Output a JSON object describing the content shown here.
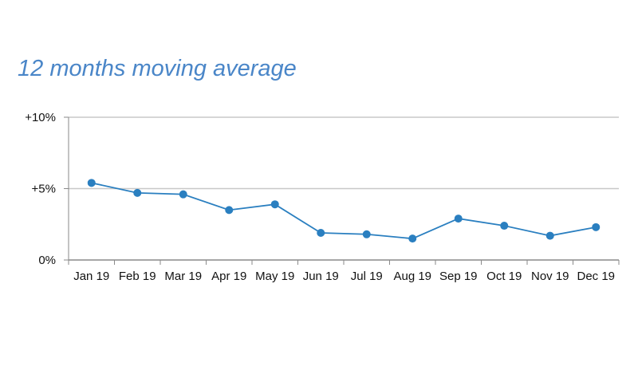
{
  "chart_data": {
    "type": "line",
    "title": "12 months moving average",
    "categories": [
      "Jan 19",
      "Feb 19",
      "Mar 19",
      "Apr 19",
      "May 19",
      "Jun 19",
      "Jul 19",
      "Aug 19",
      "Sep 19",
      "Oct 19",
      "Nov 19",
      "Dec 19"
    ],
    "series": [
      {
        "values": [
          5.4,
          4.7,
          4.6,
          3.5,
          3.9,
          1.9,
          1.8,
          1.5,
          2.9,
          2.4,
          1.7,
          2.3
        ]
      }
    ],
    "y_ticks": [
      {
        "value": 0,
        "label": "0%"
      },
      {
        "value": 5,
        "label": "+5%"
      },
      {
        "value": 10,
        "label": "+10%"
      }
    ],
    "ylim": [
      0,
      10
    ],
    "grid": true,
    "colors": {
      "line": "#2a7fc0",
      "marker": "#2a7fc0",
      "grid": "#c8c8c8",
      "title": "#4a86c8"
    }
  }
}
